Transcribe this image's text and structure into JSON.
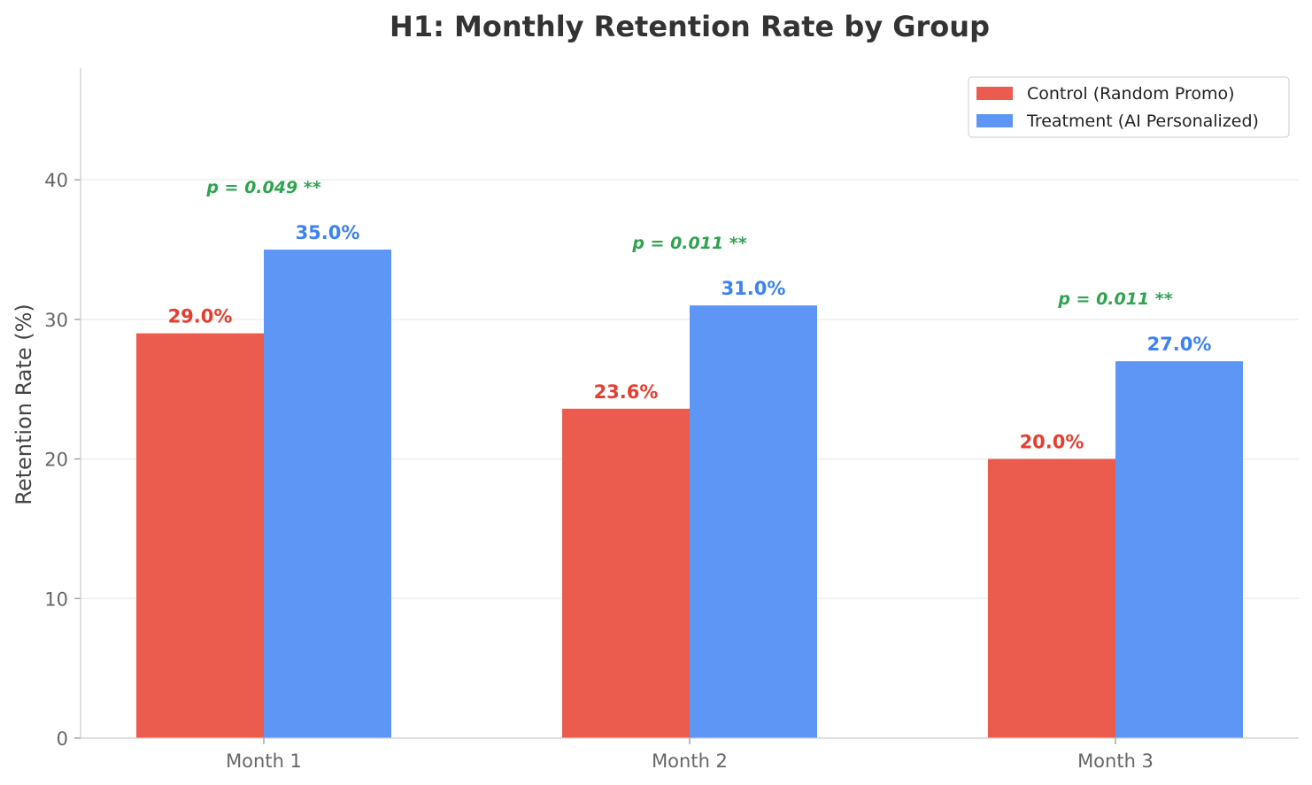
{
  "chart_data": {
    "type": "bar",
    "title": "H1: Monthly Retention Rate by Group",
    "xlabel": "",
    "ylabel": "Retention Rate (%)",
    "ylim": [
      0,
      48
    ],
    "yticks": [
      0,
      10,
      20,
      30,
      40
    ],
    "grid": "horizontal",
    "legend_position": "top-right",
    "categories": [
      "Month 1",
      "Month 2",
      "Month 3"
    ],
    "series": [
      {
        "name": "Control (Random Promo)",
        "values": [
          29.0,
          23.6,
          20.0
        ],
        "labels": [
          "29.0%",
          "23.6%",
          "20.0%"
        ],
        "color": "#EB5B4E",
        "label_color": "#E53E30"
      },
      {
        "name": "Treatment (AI Personalized)",
        "values": [
          35.0,
          31.0,
          27.0
        ],
        "labels": [
          "35.0%",
          "31.0%",
          "27.0%"
        ],
        "color": "#5E96F5",
        "label_color": "#3B82F0"
      }
    ],
    "annotations": [
      {
        "text": "p = 0.049 **",
        "category": "Month 1",
        "y": 39.5
      },
      {
        "text": "p = 0.011 **",
        "category": "Month 2",
        "y": 35.5
      },
      {
        "text": "p = 0.011 **",
        "category": "Month 3",
        "y": 31.5
      }
    ],
    "annotation_color": "#2EA44F"
  }
}
